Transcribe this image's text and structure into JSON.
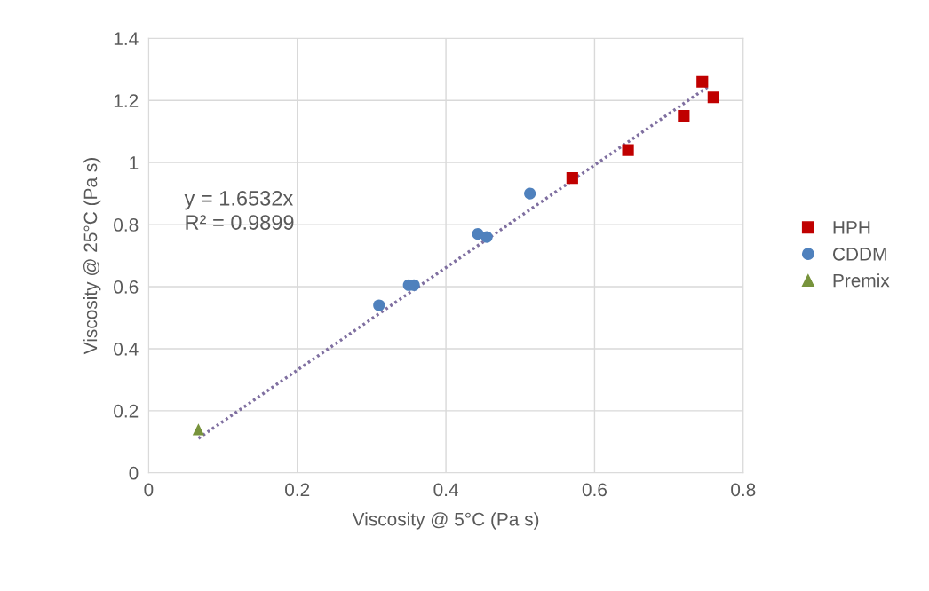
{
  "chart_data": {
    "type": "scatter",
    "xlabel": "Viscosity @ 5°C (Pa s)",
    "ylabel": "Viscosity @ 25°C (Pa s)",
    "series": [
      {
        "name": "HPH",
        "color": "#c00000",
        "marker": "square",
        "x": [
          0.57,
          0.645,
          0.72,
          0.745,
          0.76
        ],
        "values": [
          0.95,
          1.04,
          1.15,
          1.26,
          1.21
        ]
      },
      {
        "name": "CDDM",
        "color": "#4f81bd",
        "marker": "circle",
        "x": [
          0.31,
          0.35,
          0.357,
          0.443,
          0.455,
          0.513
        ],
        "values": [
          0.54,
          0.605,
          0.605,
          0.77,
          0.76,
          0.9
        ]
      },
      {
        "name": "Premix",
        "color": "#77933c",
        "marker": "triangle",
        "x": [
          0.067
        ],
        "values": [
          0.14
        ]
      },
      {
        "type": "line",
        "color": "#7f6fa0",
        "line_style": "dotted",
        "marker": "none",
        "x": [
          0.067,
          0.755
        ],
        "values": [
          0.111,
          1.248
        ]
      }
    ],
    "annotations": [
      "y = 1.6532x\nR² = 0.9899"
    ],
    "xlim": [
      0,
      0.8
    ],
    "xticks": [
      0,
      0.2,
      0.4,
      0.6,
      0.8
    ],
    "ylim": [
      0,
      1.4
    ],
    "yticks": [
      0,
      0.2,
      0.4,
      0.6,
      0.8,
      1,
      1.2,
      1.4
    ],
    "grid": true,
    "legend": "right"
  }
}
